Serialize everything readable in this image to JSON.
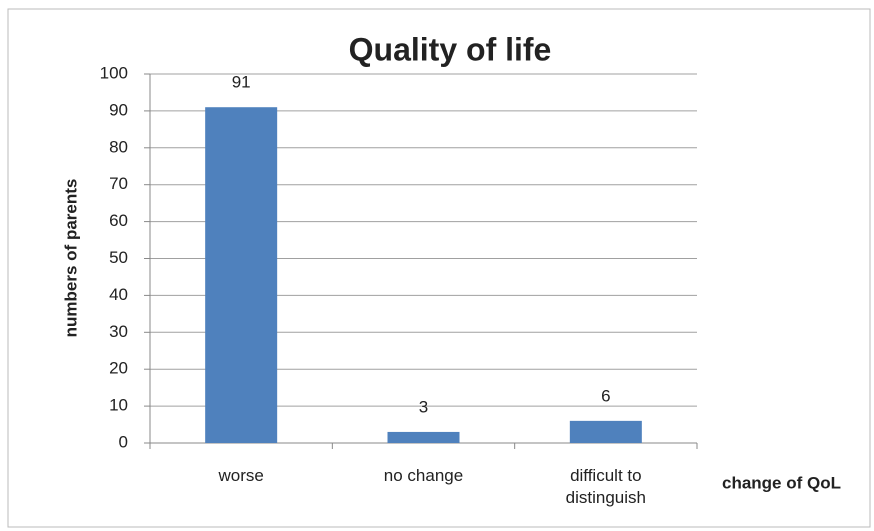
{
  "chart_data": {
    "type": "bar",
    "title": "Quality of life",
    "y_label": "numbers of parents",
    "x_label": "change of QoL",
    "categories": [
      "worse",
      "no change",
      "difficult to distinguish"
    ],
    "values": [
      91,
      3,
      6
    ],
    "color": "#4f81bd",
    "ylim": [
      0,
      100
    ],
    "yticks": [
      0,
      10,
      20,
      30,
      40,
      50,
      60,
      70,
      80,
      90,
      100
    ],
    "grid": true
  }
}
